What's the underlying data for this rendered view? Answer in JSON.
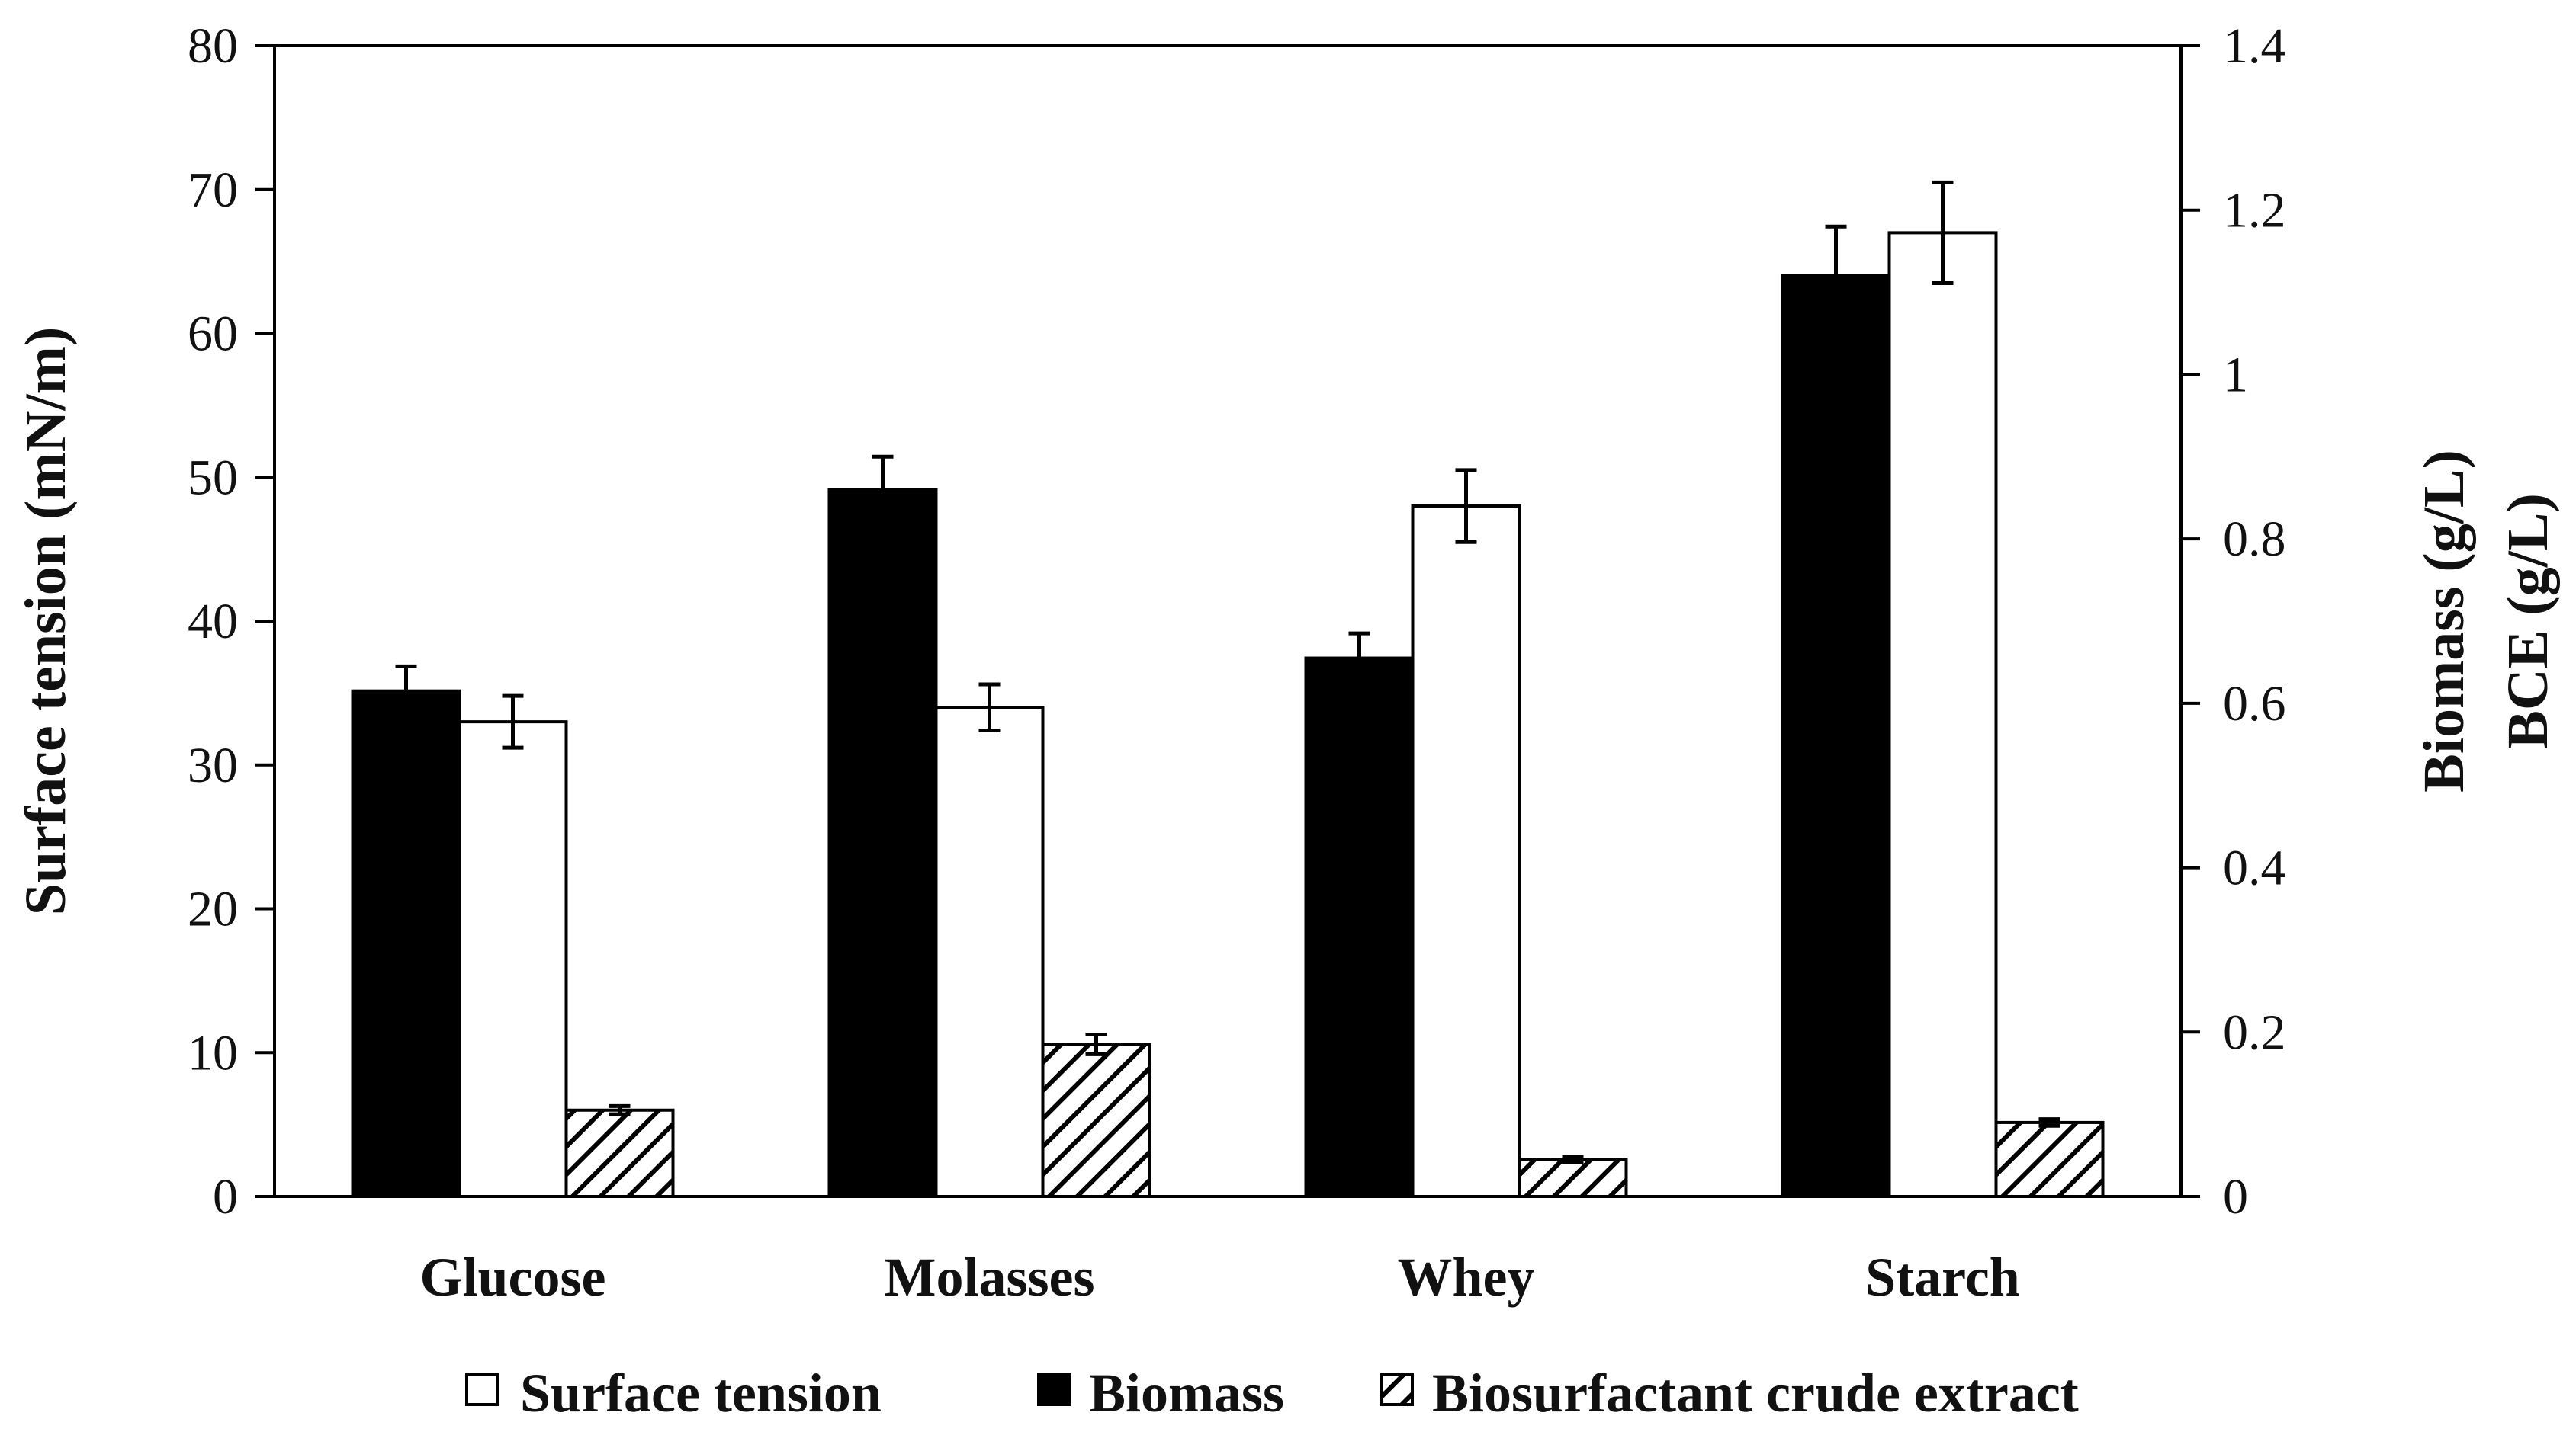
{
  "chart_data": {
    "type": "bar",
    "categories": [
      "Glucose",
      "Molasses",
      "Whey",
      "Starch"
    ],
    "y_left": {
      "label": "Surface tension (mN/m)",
      "range": [
        0,
        80
      ],
      "ticks": [
        "0",
        "10",
        "20",
        "30",
        "40",
        "50",
        "60",
        "70",
        "80"
      ]
    },
    "y_right": {
      "label_line1": "Biomass (g/L)",
      "label_line2": "BCE (g/L)",
      "range": [
        0,
        1.4
      ],
      "ticks": [
        "0",
        "0.2",
        "0.4",
        "0.6",
        "0.8",
        "1",
        "1.2",
        "1.4"
      ]
    },
    "series": [
      {
        "name": "Surface tension",
        "axis": "left",
        "fill": "white",
        "values": [
          33,
          34,
          48,
          67
        ],
        "errors": [
          1.8,
          1.6,
          2.5,
          3.5
        ]
      },
      {
        "name": "Biomass",
        "axis": "right",
        "fill": "black",
        "values": [
          0.615,
          0.86,
          0.655,
          1.12
        ],
        "errors": [
          0.03,
          0.04,
          0.03,
          0.06
        ]
      },
      {
        "name": "Biosurfactant crude extract",
        "axis": "right",
        "fill": "hatch",
        "values": [
          0.105,
          0.185,
          0.045,
          0.09
        ],
        "errors": [
          0.005,
          0.012,
          0.003,
          0.004
        ]
      }
    ],
    "legend": {
      "position": "bottom",
      "items": [
        "Surface tension",
        "Biomass",
        "Biosurfactant crude extract"
      ]
    }
  }
}
